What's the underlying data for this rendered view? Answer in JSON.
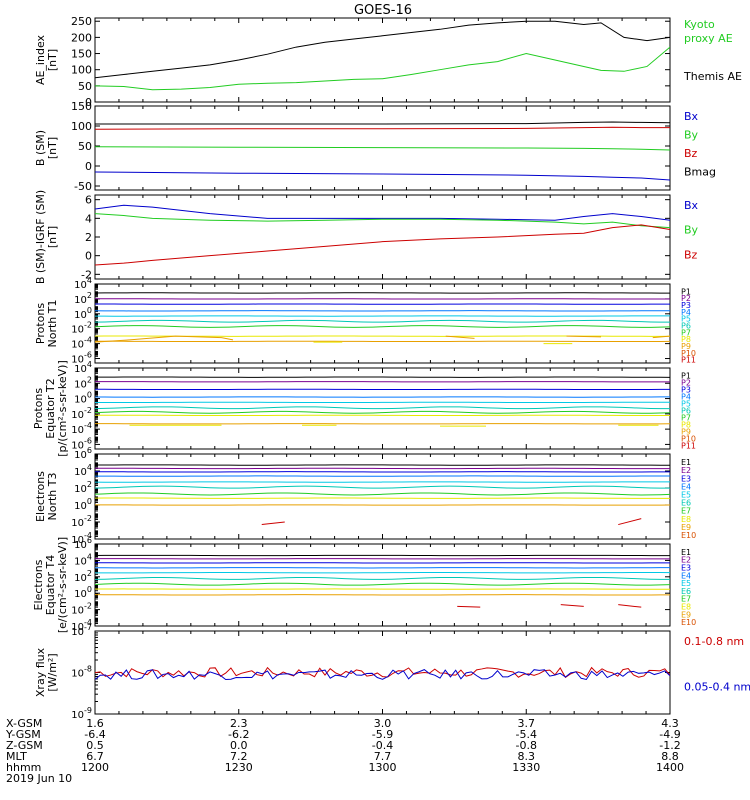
{
  "title": "GOES-16",
  "colors": {
    "black": "#000000",
    "blue": "#0000cc",
    "green": "#22cc22",
    "red": "#cc0000",
    "ch": [
      "#000000",
      "#7a0090",
      "#0000dd",
      "#0077ff",
      "#00c8e6",
      "#00c8b4",
      "#22cc22",
      "#e8e800",
      "#e8a000",
      "#d85000",
      "#cc0000",
      "#990000"
    ]
  },
  "chart_data": [
    {
      "type": "line",
      "ylabel": [
        "AE_index",
        "[nT]"
      ],
      "yticks": [
        "250",
        "200",
        "150",
        "100",
        "50",
        "0"
      ],
      "ylim": [
        0,
        260
      ],
      "legend": [
        {
          "text": "Kyoto",
          "color": "green"
        },
        {
          "text": "proxy AE",
          "color": "green"
        },
        {
          "text": "Themis AE",
          "color": "black"
        }
      ],
      "x": [
        0,
        0.05,
        0.1,
        0.15,
        0.2,
        0.25,
        0.3,
        0.35,
        0.4,
        0.45,
        0.5,
        0.55,
        0.6,
        0.65,
        0.7,
        0.75,
        0.8,
        0.85,
        0.88,
        0.92,
        0.96,
        1
      ],
      "series": [
        {
          "color": "black",
          "values": [
            75,
            85,
            95,
            105,
            115,
            130,
            148,
            170,
            185,
            195,
            205,
            215,
            225,
            238,
            245,
            250,
            250,
            240,
            245,
            200,
            190,
            200
          ]
        },
        {
          "color": "green",
          "values": [
            50,
            48,
            38,
            40,
            45,
            55,
            58,
            60,
            65,
            70,
            72,
            85,
            100,
            115,
            125,
            150,
            130,
            110,
            98,
            95,
            110,
            170
          ]
        }
      ]
    },
    {
      "type": "line",
      "ylabel": [
        "B (SM)",
        "[nT]"
      ],
      "yticks": [
        "150",
        "100",
        "50",
        "0",
        "-50"
      ],
      "ylim": [
        -60,
        150
      ],
      "legend": [
        {
          "text": "Bx",
          "color": "blue"
        },
        {
          "text": "By",
          "color": "green"
        },
        {
          "text": "Bz",
          "color": "red"
        },
        {
          "text": "Bmag",
          "color": "black"
        }
      ],
      "x": [
        0,
        0.25,
        0.5,
        0.75,
        0.85,
        0.9,
        0.95,
        1
      ],
      "series": [
        {
          "color": "black",
          "values": [
            105,
            105,
            105,
            106,
            109,
            110,
            109,
            108
          ]
        },
        {
          "color": "red",
          "values": [
            92,
            93,
            93,
            94,
            96,
            97,
            96,
            96
          ]
        },
        {
          "color": "green",
          "values": [
            48,
            47,
            46,
            45,
            44,
            43,
            42,
            40
          ]
        },
        {
          "color": "blue",
          "values": [
            -15,
            -18,
            -20,
            -23,
            -26,
            -28,
            -30,
            -35
          ]
        }
      ]
    },
    {
      "type": "line",
      "ylabel": [
        "B (SM)-IGRF (SM)",
        "[nT]"
      ],
      "yticks": [
        "6",
        "4",
        "2",
        "0",
        "-2"
      ],
      "ylim": [
        -2.5,
        6.5
      ],
      "legend": [
        {
          "text": "Bx",
          "color": "blue"
        },
        {
          "text": "By",
          "color": "green"
        },
        {
          "text": "Bz",
          "color": "red"
        }
      ],
      "x": [
        0,
        0.05,
        0.1,
        0.2,
        0.3,
        0.4,
        0.5,
        0.6,
        0.7,
        0.8,
        0.85,
        0.9,
        0.95,
        1
      ],
      "series": [
        {
          "color": "blue",
          "values": [
            5.0,
            5.4,
            5.2,
            4.5,
            4.0,
            4.0,
            4.0,
            4.0,
            3.9,
            3.8,
            4.2,
            4.5,
            4.2,
            3.8
          ]
        },
        {
          "color": "green",
          "values": [
            4.5,
            4.3,
            4.0,
            3.8,
            3.7,
            3.8,
            3.9,
            3.9,
            3.8,
            3.6,
            3.4,
            3.6,
            3.2,
            3.0
          ]
        },
        {
          "color": "red",
          "values": [
            -1.0,
            -0.8,
            -0.5,
            0.0,
            0.5,
            1.0,
            1.5,
            1.8,
            2.0,
            2.3,
            2.4,
            3.0,
            3.3,
            2.8
          ]
        }
      ]
    },
    {
      "type": "line",
      "log": true,
      "ylabel": [
        "Protons",
        "North T1"
      ],
      "ylim": [
        -6.6,
        4
      ],
      "yticks": [
        {
          "exp": 4,
          "label": "10^4"
        },
        {
          "exp": 2,
          "label": "10^2"
        },
        {
          "exp": 0,
          "label": "10^0"
        },
        {
          "exp": -2,
          "label": "10^-2"
        },
        {
          "exp": -4,
          "label": "10^-4"
        },
        {
          "exp": -6,
          "label": "10^-6"
        }
      ],
      "labels": [
        "P1",
        "P2",
        "P3",
        "P4",
        "P5",
        "P6",
        "P7",
        "P8",
        "P9",
        "P10",
        "P11"
      ],
      "levels": [
        2.8,
        2.0,
        1.3,
        0.4,
        -0.3,
        -1.0,
        -1.7,
        -3.0,
        -3.7,
        null,
        null
      ],
      "segments": [
        {
          "ch": 8,
          "points": [
            [
              0,
              -3.8
            ],
            [
              0.06,
              -3.5
            ],
            [
              0.14,
              -3.0
            ],
            [
              0.22,
              -3.2
            ],
            [
              0.24,
              -3.5
            ]
          ]
        },
        {
          "ch": 8,
          "points": [
            [
              0.61,
              -3.0
            ],
            [
              0.66,
              -3.3
            ]
          ]
        },
        {
          "ch": 8,
          "points": [
            [
              0.82,
              -3.0
            ],
            [
              0.88,
              -3.1
            ]
          ]
        },
        {
          "ch": 8,
          "points": [
            [
              0.97,
              -3.2
            ],
            [
              1,
              -3.0
            ]
          ]
        },
        {
          "ch": 7,
          "points": [
            [
              0.38,
              -3.8
            ],
            [
              0.43,
              -3.8
            ]
          ]
        },
        {
          "ch": 7,
          "points": [
            [
              0.78,
              -4.0
            ],
            [
              0.83,
              -4.0
            ]
          ]
        }
      ]
    },
    {
      "type": "line",
      "log": true,
      "ylabel": [
        "Protons",
        "Equator T2",
        "[p/(cm²-s-sr-keV)]"
      ],
      "ylim": [
        -6.6,
        4
      ],
      "yticks": [
        {
          "exp": 4,
          "label": "10^4"
        },
        {
          "exp": 2,
          "label": "10^2"
        },
        {
          "exp": 0,
          "label": "10^0"
        },
        {
          "exp": -2,
          "label": "10^-2"
        },
        {
          "exp": -4,
          "label": "10^-4"
        },
        {
          "exp": -6,
          "label": "10^-6"
        }
      ],
      "labels": [
        "P1",
        "P2",
        "P3",
        "P4",
        "P5",
        "P6",
        "P7",
        "P8",
        "P9",
        "P10",
        "P11"
      ],
      "levels": [
        2.8,
        2.2,
        1.2,
        0.2,
        -0.5,
        -1.2,
        -1.8,
        -2.2,
        -3.3,
        null,
        null
      ],
      "segments": [
        {
          "ch": 7,
          "points": [
            [
              0.06,
              -3.5
            ],
            [
              0.22,
              -3.5
            ]
          ]
        },
        {
          "ch": 7,
          "points": [
            [
              0.36,
              -3.5
            ],
            [
              0.42,
              -3.5
            ]
          ]
        },
        {
          "ch": 7,
          "points": [
            [
              0.6,
              -3.6
            ],
            [
              0.68,
              -3.6
            ]
          ]
        },
        {
          "ch": 7,
          "points": [
            [
              0.91,
              -3.5
            ],
            [
              0.98,
              -3.5
            ]
          ]
        }
      ]
    },
    {
      "type": "line",
      "log": true,
      "ylabel": [
        "Electrons",
        "North T3"
      ],
      "ylim": [
        -4,
        6
      ],
      "yticks": [
        {
          "exp": 6,
          "label": "10^6"
        },
        {
          "exp": 4,
          "label": "10^4"
        },
        {
          "exp": 2,
          "label": "10^2"
        },
        {
          "exp": 0,
          "label": "10^0"
        },
        {
          "exp": -2,
          "label": "10^-2"
        },
        {
          "exp": -4,
          "label": "10^-4"
        }
      ],
      "labels": [
        "E1",
        "E2",
        "E3",
        "E4",
        "E5",
        "E6",
        "E7",
        "E8",
        "E9",
        "E10"
      ],
      "levels": [
        4.7,
        4.3,
        3.9,
        3.4,
        2.7,
        2.1,
        1.3,
        0.8,
        0.0,
        null
      ],
      "segments": [
        {
          "ch": 10,
          "points": [
            [
              0.29,
              -2.3
            ],
            [
              0.33,
              -2.0
            ]
          ]
        },
        {
          "ch": 10,
          "points": [
            [
              0.91,
              -2.3
            ],
            [
              0.95,
              -1.6
            ]
          ]
        }
      ]
    },
    {
      "type": "line",
      "log": true,
      "ylabel": [
        "Electrons",
        "Equator T4",
        "[e/(cm²-s-sr-keV)]"
      ],
      "ylim": [
        -4,
        6
      ],
      "yticks": [
        {
          "exp": 6,
          "label": "10^6"
        },
        {
          "exp": 4,
          "label": "10^4"
        },
        {
          "exp": 2,
          "label": "10^2"
        },
        {
          "exp": 0,
          "label": "10^0"
        },
        {
          "exp": -2,
          "label": "10^-2"
        },
        {
          "exp": -4,
          "label": "10^-4"
        }
      ],
      "labels": [
        "E1",
        "E2",
        "E3",
        "E4",
        "E5",
        "E6",
        "E7",
        "E8",
        "E9",
        "E10"
      ],
      "levels": [
        4.6,
        4.2,
        3.7,
        3.1,
        2.5,
        1.8,
        1.1,
        0.5,
        -0.2,
        null
      ],
      "segments": [
        {
          "ch": 10,
          "points": [
            [
              0.63,
              -1.6
            ],
            [
              0.67,
              -1.7
            ]
          ]
        },
        {
          "ch": 10,
          "points": [
            [
              0.81,
              -1.4
            ],
            [
              0.85,
              -1.6
            ]
          ]
        },
        {
          "ch": 10,
          "points": [
            [
              0.91,
              -1.4
            ],
            [
              0.95,
              -1.7
            ]
          ]
        }
      ]
    },
    {
      "type": "line",
      "log": true,
      "ylabel": [
        "Xray flux",
        "[W/m²]"
      ],
      "ylim": [
        -9,
        -7
      ],
      "yticks": [
        {
          "exp": -7,
          "label": "10^-7"
        },
        {
          "exp": -8,
          "label": "10^-8"
        },
        {
          "exp": -9,
          "label": "10^-9"
        }
      ],
      "legend": [
        {
          "text": "0.1-0.8 nm",
          "color": "red"
        },
        {
          "text": "0.05-0.4 nm",
          "color": "blue"
        }
      ],
      "noise": [
        {
          "color": "red",
          "level": -8.0,
          "amp": 0.12
        },
        {
          "color": "blue",
          "level": -8.05,
          "amp": 0.12
        }
      ]
    }
  ],
  "x_axis": {
    "rows": [
      {
        "label": "X-GSM",
        "values": [
          "1.6",
          "2.3",
          "3.0",
          "3.7",
          "4.3"
        ]
      },
      {
        "label": "Y-GSM",
        "values": [
          "-6.4",
          "-6.2",
          "-5.9",
          "-5.4",
          "-4.9"
        ]
      },
      {
        "label": "Z-GSM",
        "values": [
          "0.5",
          "0.0",
          "-0.4",
          "-0.8",
          "-1.2"
        ]
      },
      {
        "label": "MLT",
        "values": [
          "6.7",
          "7.2",
          "7.7",
          "8.3",
          "8.8"
        ]
      },
      {
        "label": "hhmm",
        "values": [
          "1200",
          "1230",
          "1300",
          "1330",
          "1400"
        ]
      }
    ],
    "date": "2019 Jun 10"
  }
}
